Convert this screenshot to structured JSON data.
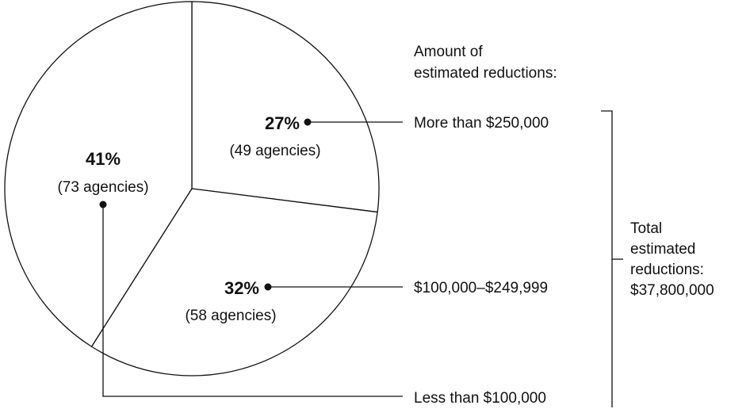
{
  "chart_data": {
    "type": "pie",
    "legend_title_lines": [
      "Amount of",
      "estimated reductions:"
    ],
    "slices": [
      {
        "category": "More than $250,000",
        "percent": 27,
        "percent_label": "27%",
        "agencies_label": "(49 agencies)"
      },
      {
        "category": "$100,000–$249,999",
        "percent": 32,
        "percent_label": "32%",
        "agencies_label": "(58 agencies)"
      },
      {
        "category": "Less than $100,000",
        "percent": 41,
        "percent_label": "41%",
        "agencies_label": "(73 agencies)"
      }
    ],
    "total_lines": [
      "Total",
      "estimated",
      "reductions:",
      "$37,800,000"
    ],
    "colors": {
      "fill": "#ffffff",
      "stroke": "#111111"
    }
  }
}
